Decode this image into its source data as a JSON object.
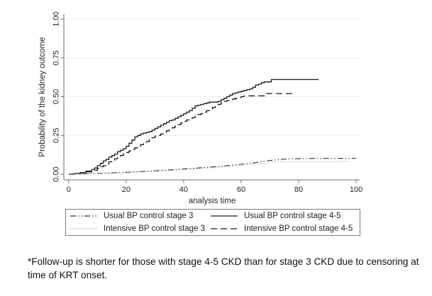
{
  "colors": {
    "axis": "#6e6e6e",
    "grid": "#e9ebee",
    "text": "#262626",
    "curve_black": "#1a1a1a",
    "curve_dark_gray": "#2e2e2e",
    "curve_light_gray": "#9a9a9a"
  },
  "legend": {
    "items": [
      {
        "label": "Usual BP control stage 3",
        "style": "dash-dot",
        "color": "#2e2e2e"
      },
      {
        "label": "Usual BP control stage 4-5",
        "style": "solid",
        "color": "#1a1a1a"
      },
      {
        "label": "Intensive BP control stage 3",
        "style": "faint",
        "color": "#9a9a9a"
      },
      {
        "label": "Intensive BP control stage 4-5",
        "style": "dashed",
        "color": "#1a1a1a"
      }
    ]
  },
  "footnote": {
    "line1": "*Follow-up is shorter for those with stage 4-5 CKD than for stage 3 CKD due to censoring at",
    "line2": "time of KRT onset."
  },
  "chart_data": {
    "type": "line",
    "subtype": "kaplan-meier-cumulative-incidence",
    "title": "",
    "xlabel": "analysis time",
    "ylabel": "Probability of the kidney outcome",
    "xlim": [
      0,
      100
    ],
    "ylim": [
      0,
      1
    ],
    "x_ticks": [
      0,
      20,
      40,
      60,
      80,
      100
    ],
    "y_ticks": [
      {
        "label": "0.00",
        "value": 0.0
      },
      {
        "label": "0.25",
        "value": 0.25
      },
      {
        "label": "0.50",
        "value": 0.5
      },
      {
        "label": "0.75",
        "value": 0.75
      },
      {
        "label": "1.00",
        "value": 1.0
      }
    ],
    "grid": "horizontal",
    "legend_position": "bottom",
    "series": [
      {
        "name": "Usual BP control stage 4-5",
        "style": "solid",
        "color": "#1a1a1a",
        "width": 1.3,
        "step": true,
        "points": [
          [
            0,
            0
          ],
          [
            2,
            0.005
          ],
          [
            4,
            0.01
          ],
          [
            6,
            0.02
          ],
          [
            8,
            0.03
          ],
          [
            9,
            0.04
          ],
          [
            10,
            0.055
          ],
          [
            11,
            0.07
          ],
          [
            12,
            0.085
          ],
          [
            13,
            0.095
          ],
          [
            14,
            0.11
          ],
          [
            15,
            0.12
          ],
          [
            16,
            0.13
          ],
          [
            17,
            0.145
          ],
          [
            18,
            0.155
          ],
          [
            19,
            0.165
          ],
          [
            20,
            0.18
          ],
          [
            21,
            0.2
          ],
          [
            22,
            0.22
          ],
          [
            23,
            0.24
          ],
          [
            24,
            0.25
          ],
          [
            25,
            0.26
          ],
          [
            26,
            0.265
          ],
          [
            27,
            0.27
          ],
          [
            28,
            0.275
          ],
          [
            29,
            0.285
          ],
          [
            30,
            0.295
          ],
          [
            31,
            0.305
          ],
          [
            32,
            0.315
          ],
          [
            33,
            0.325
          ],
          [
            34,
            0.335
          ],
          [
            35,
            0.345
          ],
          [
            36,
            0.35
          ],
          [
            37,
            0.36
          ],
          [
            38,
            0.37
          ],
          [
            39,
            0.38
          ],
          [
            40,
            0.39
          ],
          [
            41,
            0.4
          ],
          [
            42,
            0.41
          ],
          [
            43,
            0.425
          ],
          [
            44,
            0.44
          ],
          [
            45,
            0.445
          ],
          [
            46,
            0.45
          ],
          [
            47,
            0.455
          ],
          [
            48,
            0.46
          ],
          [
            49,
            0.465
          ],
          [
            51,
            0.465
          ],
          [
            52,
            0.47
          ],
          [
            53,
            0.48
          ],
          [
            54,
            0.49
          ],
          [
            55,
            0.5
          ],
          [
            56,
            0.51
          ],
          [
            57,
            0.52
          ],
          [
            58,
            0.525
          ],
          [
            59,
            0.53
          ],
          [
            60,
            0.535
          ],
          [
            61,
            0.54
          ],
          [
            62,
            0.545
          ],
          [
            63,
            0.55
          ],
          [
            64,
            0.56
          ],
          [
            65,
            0.575
          ],
          [
            66,
            0.58
          ],
          [
            67,
            0.59
          ],
          [
            68,
            0.595
          ],
          [
            70,
            0.595
          ],
          [
            70.5,
            0.61
          ],
          [
            87,
            0.61
          ]
        ]
      },
      {
        "name": "Intensive BP control stage 4-5",
        "style": "dashed",
        "color": "#1a1a1a",
        "width": 1.3,
        "step": true,
        "points": [
          [
            0,
            0
          ],
          [
            2,
            0.004
          ],
          [
            4,
            0.008
          ],
          [
            6,
            0.015
          ],
          [
            8,
            0.025
          ],
          [
            10,
            0.038
          ],
          [
            11,
            0.048
          ],
          [
            12,
            0.055
          ],
          [
            13,
            0.065
          ],
          [
            14,
            0.08
          ],
          [
            15,
            0.09
          ],
          [
            16,
            0.1
          ],
          [
            17,
            0.11
          ],
          [
            18,
            0.12
          ],
          [
            19,
            0.13
          ],
          [
            20,
            0.14
          ],
          [
            21,
            0.15
          ],
          [
            22,
            0.16
          ],
          [
            23,
            0.17
          ],
          [
            24,
            0.18
          ],
          [
            25,
            0.19
          ],
          [
            26,
            0.2
          ],
          [
            27,
            0.21
          ],
          [
            28,
            0.22
          ],
          [
            29,
            0.235
          ],
          [
            30,
            0.245
          ],
          [
            31,
            0.25
          ],
          [
            32,
            0.26
          ],
          [
            33,
            0.27
          ],
          [
            34,
            0.28
          ],
          [
            35,
            0.29
          ],
          [
            36,
            0.3
          ],
          [
            37,
            0.31
          ],
          [
            38,
            0.32
          ],
          [
            39,
            0.33
          ],
          [
            40,
            0.34
          ],
          [
            41,
            0.35
          ],
          [
            42,
            0.36
          ],
          [
            43,
            0.365
          ],
          [
            44,
            0.375
          ],
          [
            45,
            0.385
          ],
          [
            46,
            0.39
          ],
          [
            47,
            0.4
          ],
          [
            48,
            0.41
          ],
          [
            49,
            0.42
          ],
          [
            50,
            0.43
          ],
          [
            51,
            0.44
          ],
          [
            52,
            0.45
          ],
          [
            53,
            0.46
          ],
          [
            54,
            0.47
          ],
          [
            55,
            0.475
          ],
          [
            56,
            0.48
          ],
          [
            57,
            0.485
          ],
          [
            58,
            0.49
          ],
          [
            59,
            0.495
          ],
          [
            60,
            0.5
          ],
          [
            61,
            0.505
          ],
          [
            67.5,
            0.505
          ],
          [
            68,
            0.52
          ],
          [
            78,
            0.52
          ]
        ]
      },
      {
        "name": "Usual BP control stage 3",
        "style": "dash-dot",
        "color": "#2e2e2e",
        "width": 1.1,
        "step": false,
        "points": [
          [
            0,
            0
          ],
          [
            5,
            0.002
          ],
          [
            10,
            0.005
          ],
          [
            15,
            0.008
          ],
          [
            20,
            0.012
          ],
          [
            25,
            0.017
          ],
          [
            30,
            0.022
          ],
          [
            35,
            0.028
          ],
          [
            40,
            0.034
          ],
          [
            45,
            0.04
          ],
          [
            50,
            0.047
          ],
          [
            55,
            0.055
          ],
          [
            58,
            0.06
          ],
          [
            61,
            0.066
          ],
          [
            64,
            0.072
          ],
          [
            67,
            0.08
          ],
          [
            70,
            0.088
          ],
          [
            72,
            0.092
          ],
          [
            74,
            0.096
          ],
          [
            77,
            0.099
          ],
          [
            80,
            0.1
          ],
          [
            85,
            0.102
          ],
          [
            100,
            0.102
          ]
        ]
      },
      {
        "name": "Intensive BP control stage 3",
        "style": "faint",
        "color": "#9a9a9a",
        "width": 1.0,
        "step": false,
        "points": [
          [
            0,
            0
          ],
          [
            5,
            0.002
          ],
          [
            10,
            0.004
          ],
          [
            15,
            0.006
          ],
          [
            20,
            0.01
          ],
          [
            25,
            0.014
          ],
          [
            30,
            0.019
          ],
          [
            35,
            0.024
          ],
          [
            40,
            0.03
          ],
          [
            45,
            0.036
          ],
          [
            50,
            0.042
          ],
          [
            55,
            0.049
          ],
          [
            60,
            0.056
          ],
          [
            64,
            0.063
          ],
          [
            68,
            0.07
          ],
          [
            71,
            0.076
          ],
          [
            73,
            0.08
          ],
          [
            97,
            0.082
          ]
        ]
      }
    ]
  }
}
